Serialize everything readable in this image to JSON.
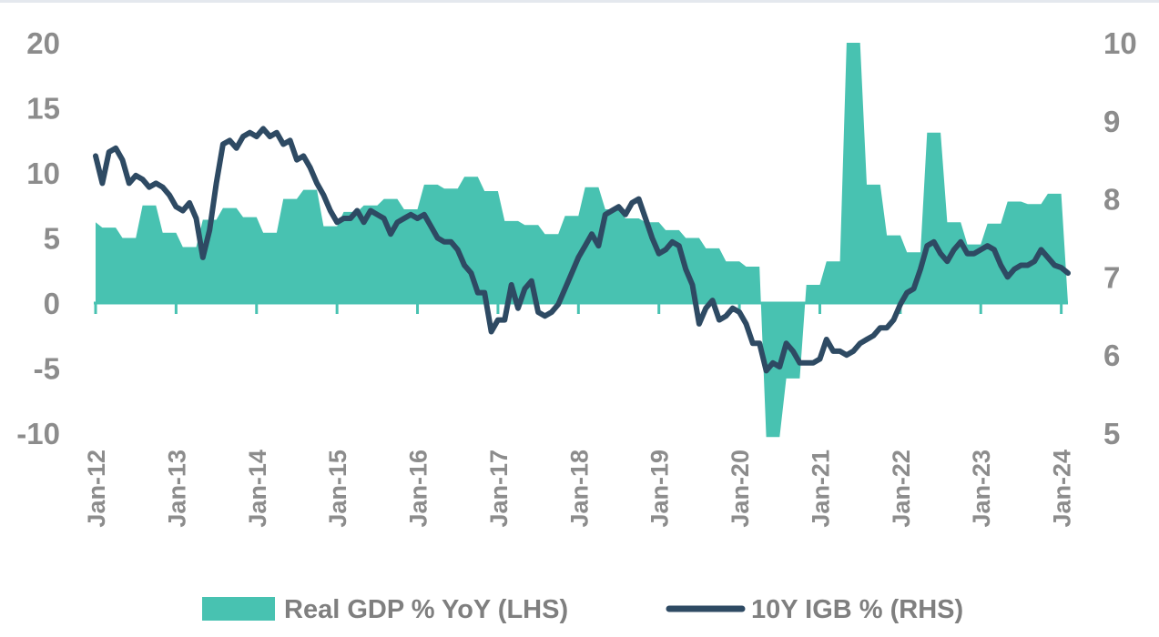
{
  "chart_data": {
    "type": "area+line",
    "series": [
      {
        "name": "Real GDP % YoY (LHS)",
        "kind": "area",
        "axis": "left",
        "color": "#48c2b1",
        "points": [
          [
            "Jan-12",
            6.2
          ],
          [
            "Feb-12",
            5.8
          ],
          [
            "Apr-12",
            5.8
          ],
          [
            "May-12",
            5.0
          ],
          [
            "Jul-12",
            5.0
          ],
          [
            "Aug-12",
            7.5
          ],
          [
            "Oct-12",
            7.5
          ],
          [
            "Nov-12",
            5.4
          ],
          [
            "Jan-13",
            5.4
          ],
          [
            "Feb-13",
            4.3
          ],
          [
            "Apr-13",
            4.3
          ],
          [
            "May-13",
            6.4
          ],
          [
            "Jul-13",
            6.4
          ],
          [
            "Aug-13",
            7.3
          ],
          [
            "Oct-13",
            7.3
          ],
          [
            "Nov-13",
            6.6
          ],
          [
            "Jan-14",
            6.6
          ],
          [
            "Feb-14",
            5.4
          ],
          [
            "Apr-14",
            5.4
          ],
          [
            "May-14",
            8.0
          ],
          [
            "Jul-14",
            8.0
          ],
          [
            "Aug-14",
            8.7
          ],
          [
            "Oct-14",
            8.7
          ],
          [
            "Nov-14",
            5.9
          ],
          [
            "Jan-15",
            5.9
          ],
          [
            "Feb-15",
            7.0
          ],
          [
            "Apr-15",
            7.0
          ],
          [
            "May-15",
            7.5
          ],
          [
            "Jul-15",
            7.5
          ],
          [
            "Aug-15",
            8.0
          ],
          [
            "Oct-15",
            8.0
          ],
          [
            "Nov-15",
            7.2
          ],
          [
            "Jan-16",
            7.2
          ],
          [
            "Feb-16",
            9.1
          ],
          [
            "Apr-16",
            9.1
          ],
          [
            "May-16",
            8.8
          ],
          [
            "Jul-16",
            8.8
          ],
          [
            "Aug-16",
            9.7
          ],
          [
            "Oct-16",
            9.7
          ],
          [
            "Nov-16",
            8.6
          ],
          [
            "Jan-17",
            8.6
          ],
          [
            "Feb-17",
            6.3
          ],
          [
            "Apr-17",
            6.3
          ],
          [
            "May-17",
            6.0
          ],
          [
            "Jul-17",
            6.0
          ],
          [
            "Aug-17",
            5.3
          ],
          [
            "Oct-17",
            5.3
          ],
          [
            "Nov-17",
            6.7
          ],
          [
            "Jan-18",
            6.7
          ],
          [
            "Feb-18",
            8.9
          ],
          [
            "Apr-18",
            8.9
          ],
          [
            "May-18",
            7.2
          ],
          [
            "Jul-18",
            7.2
          ],
          [
            "Aug-18",
            6.5
          ],
          [
            "Oct-18",
            6.5
          ],
          [
            "Nov-18",
            6.2
          ],
          [
            "Jan-19",
            6.2
          ],
          [
            "Feb-19",
            5.6
          ],
          [
            "Apr-19",
            5.6
          ],
          [
            "May-19",
            5.0
          ],
          [
            "Jul-19",
            5.0
          ],
          [
            "Aug-19",
            4.2
          ],
          [
            "Oct-19",
            4.2
          ],
          [
            "Nov-19",
            3.2
          ],
          [
            "Jan-20",
            3.2
          ],
          [
            "Feb-20",
            2.8
          ],
          [
            "Apr-20",
            2.8
          ],
          [
            "May-20",
            -10.3
          ],
          [
            "Jul-20",
            -10.3
          ],
          [
            "Aug-20",
            -5.8
          ],
          [
            "Oct-20",
            -5.8
          ],
          [
            "Nov-20",
            1.4
          ],
          [
            "Jan-21",
            1.4
          ],
          [
            "Feb-21",
            3.2
          ],
          [
            "Apr-21",
            3.2
          ],
          [
            "May-21",
            20.0
          ],
          [
            "Jul-21",
            20.0
          ],
          [
            "Aug-21",
            9.1
          ],
          [
            "Oct-21",
            9.1
          ],
          [
            "Nov-21",
            5.2
          ],
          [
            "Jan-22",
            5.2
          ],
          [
            "Feb-22",
            3.9
          ],
          [
            "Apr-22",
            3.9
          ],
          [
            "May-22",
            13.1
          ],
          [
            "Jul-22",
            13.1
          ],
          [
            "Aug-22",
            6.2
          ],
          [
            "Oct-22",
            6.2
          ],
          [
            "Nov-22",
            4.5
          ],
          [
            "Jan-23",
            4.5
          ],
          [
            "Feb-23",
            6.1
          ],
          [
            "Apr-23",
            6.1
          ],
          [
            "May-23",
            7.8
          ],
          [
            "Jul-23",
            7.8
          ],
          [
            "Aug-23",
            7.6
          ],
          [
            "Oct-23",
            7.6
          ],
          [
            "Nov-23",
            8.4
          ],
          [
            "Jan-24",
            8.4
          ],
          [
            "Feb-24",
            0.0
          ]
        ]
      },
      {
        "name": "10Y IGB % (RHS)",
        "kind": "line",
        "axis": "right",
        "color": "#2e4a63",
        "points": [
          [
            "Jan-12",
            8.55
          ],
          [
            "Feb-12",
            8.2
          ],
          [
            "Mar-12",
            8.6
          ],
          [
            "Apr-12",
            8.65
          ],
          [
            "May-12",
            8.5
          ],
          [
            "Jun-12",
            8.2
          ],
          [
            "Jul-12",
            8.3
          ],
          [
            "Aug-12",
            8.25
          ],
          [
            "Sep-12",
            8.15
          ],
          [
            "Oct-12",
            8.2
          ],
          [
            "Nov-12",
            8.15
          ],
          [
            "Dec-12",
            8.05
          ],
          [
            "Jan-13",
            7.9
          ],
          [
            "Feb-13",
            7.85
          ],
          [
            "Mar-13",
            7.95
          ],
          [
            "Apr-13",
            7.75
          ],
          [
            "May-13",
            7.25
          ],
          [
            "Jun-13",
            7.6
          ],
          [
            "Jul-13",
            8.2
          ],
          [
            "Aug-13",
            8.7
          ],
          [
            "Sep-13",
            8.75
          ],
          [
            "Oct-13",
            8.65
          ],
          [
            "Nov-13",
            8.8
          ],
          [
            "Dec-13",
            8.85
          ],
          [
            "Jan-14",
            8.8
          ],
          [
            "Feb-14",
            8.9
          ],
          [
            "Mar-14",
            8.8
          ],
          [
            "Apr-14",
            8.85
          ],
          [
            "May-14",
            8.7
          ],
          [
            "Jun-14",
            8.75
          ],
          [
            "Jul-14",
            8.5
          ],
          [
            "Aug-14",
            8.55
          ],
          [
            "Sep-14",
            8.4
          ],
          [
            "Oct-14",
            8.2
          ],
          [
            "Nov-14",
            8.05
          ],
          [
            "Dec-14",
            7.85
          ],
          [
            "Jan-15",
            7.7
          ],
          [
            "Feb-15",
            7.75
          ],
          [
            "Mar-15",
            7.75
          ],
          [
            "Apr-15",
            7.85
          ],
          [
            "May-15",
            7.7
          ],
          [
            "Jun-15",
            7.85
          ],
          [
            "Jul-15",
            7.8
          ],
          [
            "Aug-15",
            7.75
          ],
          [
            "Sep-15",
            7.55
          ],
          [
            "Oct-15",
            7.7
          ],
          [
            "Nov-15",
            7.75
          ],
          [
            "Dec-15",
            7.8
          ],
          [
            "Jan-16",
            7.75
          ],
          [
            "Feb-16",
            7.8
          ],
          [
            "Mar-16",
            7.65
          ],
          [
            "Apr-16",
            7.5
          ],
          [
            "May-16",
            7.45
          ],
          [
            "Jun-16",
            7.45
          ],
          [
            "Jul-16",
            7.35
          ],
          [
            "Aug-16",
            7.15
          ],
          [
            "Sep-16",
            7.05
          ],
          [
            "Oct-16",
            6.8
          ],
          [
            "Nov-16",
            6.8
          ],
          [
            "Dec-16",
            6.3
          ],
          [
            "Jan-17",
            6.45
          ],
          [
            "Feb-17",
            6.45
          ],
          [
            "Mar-17",
            6.9
          ],
          [
            "Apr-17",
            6.6
          ],
          [
            "May-17",
            6.85
          ],
          [
            "Jun-17",
            6.95
          ],
          [
            "Jul-17",
            6.55
          ],
          [
            "Aug-17",
            6.5
          ],
          [
            "Sep-17",
            6.55
          ],
          [
            "Oct-17",
            6.65
          ],
          [
            "Nov-17",
            6.85
          ],
          [
            "Dec-17",
            7.05
          ],
          [
            "Jan-18",
            7.25
          ],
          [
            "Feb-18",
            7.4
          ],
          [
            "Mar-18",
            7.55
          ],
          [
            "Apr-18",
            7.4
          ],
          [
            "May-18",
            7.8
          ],
          [
            "Jun-18",
            7.85
          ],
          [
            "Jul-18",
            7.9
          ],
          [
            "Aug-18",
            7.8
          ],
          [
            "Sep-18",
            7.95
          ],
          [
            "Oct-18",
            8.0
          ],
          [
            "Nov-18",
            7.75
          ],
          [
            "Dec-18",
            7.5
          ],
          [
            "Jan-19",
            7.3
          ],
          [
            "Feb-19",
            7.35
          ],
          [
            "Mar-19",
            7.45
          ],
          [
            "Apr-19",
            7.4
          ],
          [
            "May-19",
            7.1
          ],
          [
            "Jun-19",
            6.9
          ],
          [
            "Jul-19",
            6.4
          ],
          [
            "Aug-19",
            6.6
          ],
          [
            "Sep-19",
            6.7
          ],
          [
            "Oct-19",
            6.45
          ],
          [
            "Nov-19",
            6.5
          ],
          [
            "Dec-19",
            6.6
          ],
          [
            "Jan-20",
            6.55
          ],
          [
            "Feb-20",
            6.4
          ],
          [
            "Mar-20",
            6.15
          ],
          [
            "Apr-20",
            6.15
          ],
          [
            "May-20",
            5.8
          ],
          [
            "Jun-20",
            5.9
          ],
          [
            "Jul-20",
            5.85
          ],
          [
            "Aug-20",
            6.15
          ],
          [
            "Sep-20",
            6.05
          ],
          [
            "Oct-20",
            5.9
          ],
          [
            "Nov-20",
            5.9
          ],
          [
            "Dec-20",
            5.9
          ],
          [
            "Jan-21",
            5.95
          ],
          [
            "Feb-21",
            6.2
          ],
          [
            "Mar-21",
            6.05
          ],
          [
            "Apr-21",
            6.05
          ],
          [
            "May-21",
            6.0
          ],
          [
            "Jun-21",
            6.05
          ],
          [
            "Jul-21",
            6.15
          ],
          [
            "Aug-21",
            6.2
          ],
          [
            "Sep-21",
            6.25
          ],
          [
            "Oct-21",
            6.35
          ],
          [
            "Nov-21",
            6.35
          ],
          [
            "Dec-21",
            6.45
          ],
          [
            "Jan-22",
            6.65
          ],
          [
            "Feb-22",
            6.8
          ],
          [
            "Mar-22",
            6.85
          ],
          [
            "Apr-22",
            7.1
          ],
          [
            "May-22",
            7.4
          ],
          [
            "Jun-22",
            7.45
          ],
          [
            "Jul-22",
            7.3
          ],
          [
            "Aug-22",
            7.2
          ],
          [
            "Sep-22",
            7.35
          ],
          [
            "Oct-22",
            7.45
          ],
          [
            "Nov-22",
            7.3
          ],
          [
            "Dec-22",
            7.3
          ],
          [
            "Jan-23",
            7.35
          ],
          [
            "Feb-23",
            7.4
          ],
          [
            "Mar-23",
            7.35
          ],
          [
            "Apr-23",
            7.15
          ],
          [
            "May-23",
            7.0
          ],
          [
            "Jun-23",
            7.1
          ],
          [
            "Jul-23",
            7.15
          ],
          [
            "Aug-23",
            7.15
          ],
          [
            "Sep-23",
            7.2
          ],
          [
            "Oct-23",
            7.35
          ],
          [
            "Nov-23",
            7.25
          ],
          [
            "Dec-23",
            7.15
          ],
          [
            "Jan-24",
            7.12
          ],
          [
            "Feb-24",
            7.05
          ]
        ]
      }
    ],
    "left_axis": {
      "ylim": [
        -10,
        20
      ],
      "ticks": [
        "20",
        "15",
        "10",
        "5",
        "0",
        "-5",
        "-10"
      ]
    },
    "right_axis": {
      "ylim": [
        5,
        10
      ],
      "ticks": [
        "10",
        "9",
        "8",
        "7",
        "6",
        "5"
      ]
    },
    "x_ticks": [
      "Jan-12",
      "Jan-13",
      "Jan-14",
      "Jan-15",
      "Jan-16",
      "Jan-17",
      "Jan-18",
      "Jan-19",
      "Jan-20",
      "Jan-21",
      "Jan-22",
      "Jan-23",
      "Jan-24"
    ],
    "x_range": [
      "Jan-12",
      "Feb-24"
    ],
    "grid": false,
    "legend_position": "bottom",
    "legend": [
      "Real GDP % YoY (LHS)",
      "10Y IGB % (RHS)"
    ]
  }
}
